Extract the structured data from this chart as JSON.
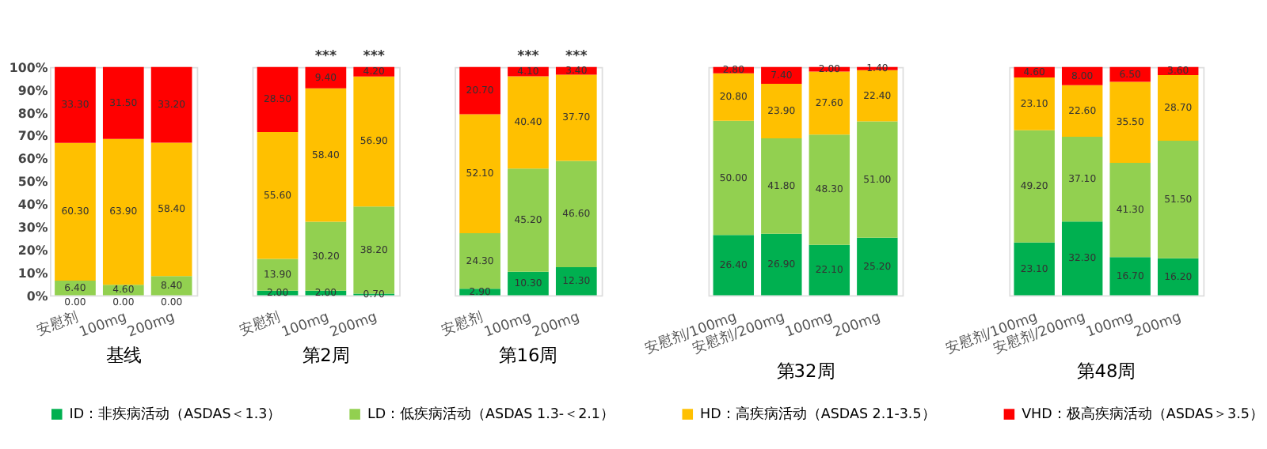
{
  "chart_data": [
    {
      "type": "bar",
      "stacked": true,
      "title": "基线",
      "categories": [
        "安慰剂",
        "100mg",
        "200mg"
      ],
      "ylim": [
        0,
        100
      ],
      "yticks": [
        {
          "value": 0,
          "label": "0%"
        },
        {
          "value": 10,
          "label": "10%"
        },
        {
          "value": 20,
          "label": "20%"
        },
        {
          "value": 30,
          "label": "30%"
        },
        {
          "value": 40,
          "label": "40%"
        },
        {
          "value": 50,
          "label": "50%"
        },
        {
          "value": 60,
          "label": "60%"
        },
        {
          "value": 70,
          "label": "70%"
        },
        {
          "value": 80,
          "label": "80%"
        },
        {
          "value": 90,
          "label": "90%"
        },
        {
          "value": 100,
          "label": "100%"
        }
      ],
      "legend": "bottom",
      "series": [
        {
          "name": "ID：非疾病活动（ASDAS＜1.3）",
          "color": "#00b050",
          "values": [
            0,
            0,
            0
          ],
          "value_labels": [
            "0.00",
            "0.00",
            "0.00"
          ]
        },
        {
          "name": "LD：低疾病活动（ASDAS 1.3-＜2.1）",
          "color": "#92d050",
          "values": [
            6.4,
            4.6,
            8.4
          ],
          "value_labels": [
            "6.40",
            "4.60",
            "8.40"
          ]
        },
        {
          "name": "HD：高疾病活动（ASDAS 2.1-3.5）",
          "color": "#ffc000",
          "values": [
            60.3,
            63.9,
            58.4
          ],
          "value_labels": [
            "60.30",
            "63.90",
            "58.40"
          ]
        },
        {
          "name": "VHD：极高疾病活动（ASDAS＞3.5）",
          "color": "#ff0000",
          "values": [
            33.3,
            31.5,
            33.2
          ],
          "value_labels": [
            "33.30",
            "31.50",
            "33.20"
          ]
        }
      ]
    },
    {
      "type": "bar",
      "stacked": true,
      "title": "第2周",
      "categories": [
        "安慰剂",
        "100mg",
        "200mg"
      ],
      "ylim": [
        0,
        100
      ],
      "tick_labels": "x",
      "annotations": [
        {
          "text": "***",
          "x": "100mg",
          "y": 100
        },
        {
          "text": "***",
          "x": "200mg",
          "y": 100
        }
      ],
      "series": [
        {
          "color": "#00b050",
          "values": [
            2.0,
            2.0,
            0.7
          ],
          "value_labels": [
            "2.00",
            "2.00",
            "0.70"
          ]
        },
        {
          "color": "#92d050",
          "values": [
            13.9,
            30.2,
            38.2
          ],
          "value_labels": [
            "13.90",
            "30.20",
            "38.20"
          ]
        },
        {
          "color": "#ffc000",
          "values": [
            55.6,
            58.4,
            56.9
          ],
          "value_labels": [
            "55.60",
            "58.40",
            "56.90"
          ]
        },
        {
          "color": "#ff0000",
          "values": [
            28.5,
            9.4,
            4.2
          ],
          "value_labels": [
            "28.50",
            "9.40",
            "4.20"
          ]
        }
      ]
    },
    {
      "type": "bar",
      "stacked": true,
      "title": "第16周",
      "categories": [
        "安慰剂",
        "100mg",
        "200mg"
      ],
      "ylim": [
        0,
        100
      ],
      "tick_labels": "x",
      "annotations": [
        {
          "text": "***",
          "x": "100mg",
          "y": 100
        },
        {
          "text": "***",
          "x": "200mg",
          "y": 100
        }
      ],
      "series": [
        {
          "color": "#00b050",
          "values": [
            2.9,
            10.3,
            12.3
          ],
          "value_labels": [
            "2.90",
            "10.30",
            "12.30"
          ]
        },
        {
          "color": "#92d050",
          "values": [
            24.3,
            45.2,
            46.6
          ],
          "value_labels": [
            "24.30",
            "45.20",
            "46.60"
          ]
        },
        {
          "color": "#ffc000",
          "values": [
            52.1,
            40.4,
            37.7
          ],
          "value_labels": [
            "52.10",
            "40.40",
            "37.70"
          ]
        },
        {
          "color": "#ff0000",
          "values": [
            20.7,
            4.1,
            3.4
          ],
          "value_labels": [
            "20.70",
            "4.10",
            "3.40"
          ]
        }
      ]
    },
    {
      "type": "bar",
      "stacked": true,
      "title": "第32周",
      "categories": [
        "安慰剂/100mg",
        "安慰剂/200mg",
        "100mg",
        "200mg"
      ],
      "ylim": [
        0,
        100
      ],
      "tick_labels": "x",
      "series": [
        {
          "color": "#00b050",
          "values": [
            26.4,
            26.9,
            22.1,
            25.2
          ],
          "value_labels": [
            "26.40",
            "26.90",
            "22.10",
            "25.20"
          ]
        },
        {
          "color": "#92d050",
          "values": [
            50.0,
            41.8,
            48.3,
            51.0
          ],
          "value_labels": [
            "50.00",
            "41.80",
            "48.30",
            "51.00"
          ]
        },
        {
          "color": "#ffc000",
          "values": [
            20.8,
            23.9,
            27.6,
            22.4
          ],
          "value_labels": [
            "20.80",
            "23.90",
            "27.60",
            "22.40"
          ]
        },
        {
          "color": "#ff0000",
          "values": [
            2.8,
            7.4,
            2.0,
            1.4
          ],
          "value_labels": [
            "2.80",
            "7.40",
            "2.00",
            "1.40"
          ]
        }
      ]
    },
    {
      "type": "bar",
      "stacked": true,
      "title": "第48周",
      "categories": [
        "安慰剂/100mg",
        "安慰剂/200mg",
        "100mg",
        "200mg"
      ],
      "ylim": [
        0,
        100
      ],
      "tick_labels": "x",
      "series": [
        {
          "color": "#00b050",
          "values": [
            23.1,
            32.3,
            16.7,
            16.2
          ],
          "value_labels": [
            "23.10",
            "32.30",
            "16.70",
            "16.20"
          ]
        },
        {
          "color": "#92d050",
          "values": [
            49.2,
            37.1,
            41.3,
            51.5
          ],
          "value_labels": [
            "49.20",
            "37.10",
            "41.30",
            "51.50"
          ]
        },
        {
          "color": "#ffc000",
          "values": [
            23.1,
            22.6,
            35.5,
            28.7
          ],
          "value_labels": [
            "23.10",
            "22.60",
            "35.50",
            "28.70"
          ]
        },
        {
          "color": "#ff0000",
          "values": [
            4.6,
            8.0,
            6.5,
            3.6
          ],
          "value_labels": [
            "4.60",
            "8.00",
            "6.50",
            "3.60"
          ]
        }
      ]
    }
  ]
}
